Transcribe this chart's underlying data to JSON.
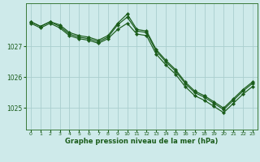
{
  "background_color": "#ceeaea",
  "grid_color": "#aacece",
  "line_color": "#1a5c1a",
  "xlabel": "Graphe pression niveau de la mer (hPa)",
  "xlim": [
    -0.5,
    23.5
  ],
  "ylim": [
    1024.3,
    1028.4
  ],
  "yticks": [
    1025,
    1026,
    1027
  ],
  "xticks": [
    0,
    1,
    2,
    3,
    4,
    5,
    6,
    7,
    8,
    9,
    10,
    11,
    12,
    13,
    14,
    15,
    16,
    17,
    18,
    19,
    20,
    21,
    22,
    23
  ],
  "series1": {
    "x": [
      0,
      1,
      2,
      3,
      4,
      5,
      6,
      7,
      8,
      9,
      10,
      11,
      12,
      13,
      14,
      15,
      16,
      17,
      18,
      19,
      20,
      21,
      22,
      23
    ],
    "y": [
      1027.8,
      1027.65,
      1027.8,
      1027.7,
      1027.45,
      1027.35,
      1027.3,
      1027.2,
      1027.35,
      1027.75,
      1028.05,
      1027.55,
      1027.5,
      1026.9,
      1026.55,
      1026.25,
      1025.85,
      1025.55,
      1025.4,
      1025.2,
      1025.0,
      1025.3,
      1025.6,
      1025.85
    ]
  },
  "series2": {
    "x": [
      0,
      1,
      2,
      3,
      4,
      5,
      6,
      7,
      8,
      9,
      10,
      11,
      12,
      13,
      14,
      15,
      16,
      17,
      18,
      19,
      20,
      21,
      22,
      23
    ],
    "y": [
      1027.8,
      1027.65,
      1027.8,
      1027.65,
      1027.4,
      1027.3,
      1027.25,
      1027.15,
      1027.3,
      1027.7,
      1027.95,
      1027.5,
      1027.45,
      1026.85,
      1026.5,
      1026.2,
      1025.8,
      1025.5,
      1025.35,
      1025.15,
      1024.95,
      1025.25,
      1025.55,
      1025.8
    ]
  },
  "series3": {
    "x": [
      0,
      1,
      2,
      3,
      4,
      5,
      6,
      7,
      8,
      9,
      10,
      11,
      12,
      13,
      14,
      15,
      16,
      17,
      18,
      19,
      20,
      21,
      22,
      23
    ],
    "y": [
      1027.75,
      1027.6,
      1027.75,
      1027.6,
      1027.35,
      1027.25,
      1027.2,
      1027.1,
      1027.25,
      1027.55,
      1027.75,
      1027.4,
      1027.35,
      1026.75,
      1026.4,
      1026.1,
      1025.7,
      1025.4,
      1025.25,
      1025.05,
      1024.85,
      1025.15,
      1025.45,
      1025.7
    ]
  }
}
